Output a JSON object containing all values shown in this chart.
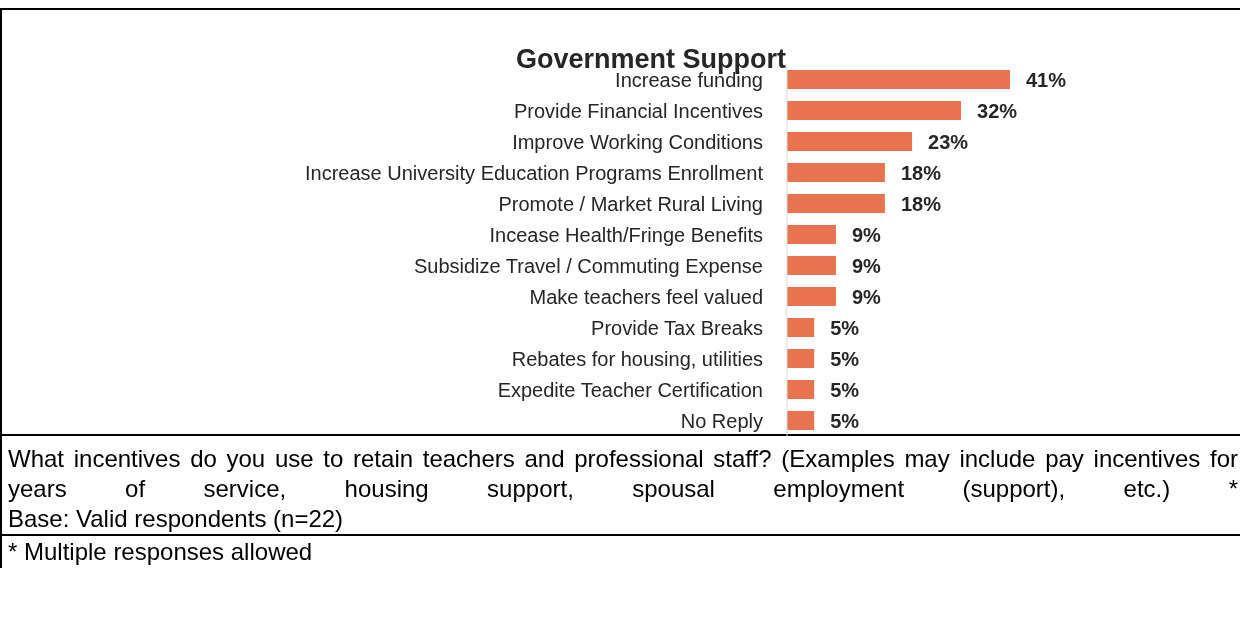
{
  "chart_data": {
    "type": "bar",
    "orientation": "horizontal",
    "title": "Government Support",
    "categories": [
      "Increase funding",
      "Provide Financial Incentives",
      "Improve Working Conditions",
      "Increase University Education Programs Enrollment",
      "Promote / Market Rural Living",
      "Incease Health/Fringe Benefits",
      "Subsidize Travel / Commuting Expense",
      "Make teachers feel valued",
      "Provide Tax Breaks",
      "Rebates for housing, utilities",
      "Expedite Teacher Certification",
      "No Reply"
    ],
    "values": [
      41,
      32,
      23,
      18,
      18,
      9,
      9,
      9,
      5,
      5,
      5,
      5
    ],
    "value_labels": [
      "41%",
      "32%",
      "23%",
      "18%",
      "18%",
      "9%",
      "9%",
      "9%",
      "5%",
      "5%",
      "5%",
      "5%"
    ],
    "color": "#e8734f",
    "annotations": [
      "What incentives do you use to retain teachers and professional staff? (Examples may include pay incentives for years of service, housing support, spousal employment (support), etc.) *",
      "Base: Valid respondents (n=22)",
      "* Multiple responses allowed"
    ]
  }
}
